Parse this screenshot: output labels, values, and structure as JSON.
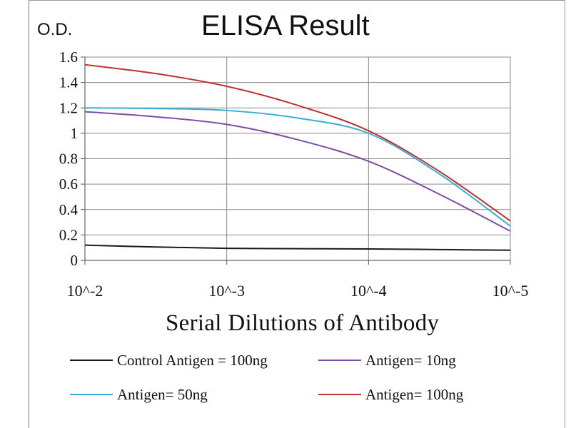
{
  "chart_data": {
    "type": "line",
    "title": "ELISA Result",
    "ylabel": "O.D.",
    "xlabel": "Serial Dilutions  of Antibody",
    "x_tick_labels": [
      "10^-2",
      "10^-3",
      "10^-4",
      "10^-5"
    ],
    "y_tick_labels": [
      "0",
      "0.2",
      "0.4",
      "0.6",
      "0.8",
      "1",
      "1.2",
      "1.4",
      "1.6"
    ],
    "ylim": [
      0,
      1.6
    ],
    "x_log_exponent_range": [
      -2,
      -5
    ],
    "grid": true,
    "series": [
      {
        "name": "Control Antigen = 100ng",
        "color": "#1a1a1a",
        "x": [
          -2,
          -2.5,
          -3,
          -3.5,
          -4,
          -4.5,
          -5
        ],
        "values": [
          0.12,
          0.105,
          0.095,
          0.092,
          0.09,
          0.085,
          0.08
        ]
      },
      {
        "name": "Antigen= 10ng",
        "color": "#7b4fa6",
        "x": [
          -2,
          -2.5,
          -3,
          -3.5,
          -4,
          -4.5,
          -5
        ],
        "values": [
          1.17,
          1.13,
          1.07,
          0.95,
          0.78,
          0.52,
          0.23
        ]
      },
      {
        "name": "Antigen= 50ng",
        "color": "#36b0d6",
        "x": [
          -2,
          -2.5,
          -3,
          -3.5,
          -4,
          -4.5,
          -5
        ],
        "values": [
          1.2,
          1.195,
          1.18,
          1.12,
          1.0,
          0.68,
          0.27
        ]
      },
      {
        "name": "Antigen= 100ng",
        "color": "#c03030",
        "x": [
          -2,
          -2.5,
          -3,
          -3.5,
          -4,
          -4.5,
          -5
        ],
        "values": [
          1.54,
          1.47,
          1.37,
          1.22,
          1.02,
          0.7,
          0.31
        ]
      }
    ],
    "legend": "bottom"
  }
}
